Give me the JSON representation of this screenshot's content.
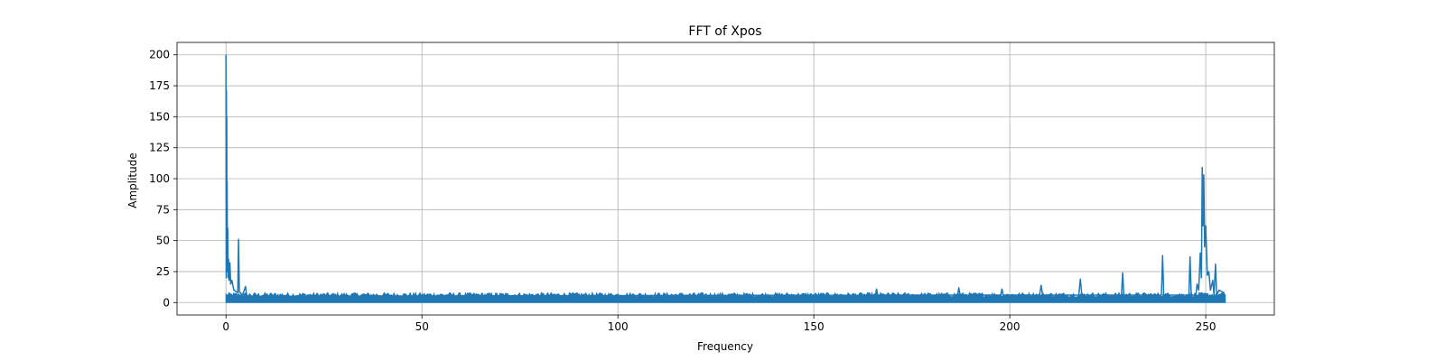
{
  "chart_data": {
    "type": "line",
    "title": "FFT of Xpos",
    "xlabel": "Frequency",
    "ylabel": "Amplitude",
    "xlim": [
      -12.5,
      267.5
    ],
    "ylim": [
      -10,
      210
    ],
    "xticks": [
      0,
      50,
      100,
      150,
      200,
      250
    ],
    "yticks": [
      0,
      25,
      50,
      75,
      100,
      125,
      150,
      175,
      200
    ],
    "grid": true,
    "color": "#1f77b4",
    "noise_floor": {
      "x_range": [
        0,
        255
      ],
      "typical_max": 8
    },
    "series": [
      {
        "points": [
          [
            0.0,
            200
          ],
          [
            0.05,
            20
          ],
          [
            0.1,
            171
          ],
          [
            0.15,
            40
          ],
          [
            0.2,
            150
          ],
          [
            0.25,
            30
          ],
          [
            0.3,
            98
          ],
          [
            0.35,
            25
          ],
          [
            0.45,
            60
          ],
          [
            0.55,
            20
          ],
          [
            0.65,
            35
          ],
          [
            0.8,
            18
          ],
          [
            1.0,
            32
          ],
          [
            1.2,
            15
          ],
          [
            1.5,
            18
          ],
          [
            2.0,
            10
          ],
          [
            3.0,
            8
          ],
          [
            3.2,
            51
          ],
          [
            3.4,
            9
          ],
          [
            4.2,
            6
          ],
          [
            5.0,
            13
          ],
          [
            5.3,
            5
          ],
          [
            165.7,
            6
          ],
          [
            166.0,
            11
          ],
          [
            166.3,
            6
          ],
          [
            186.7,
            6
          ],
          [
            187.0,
            12
          ],
          [
            187.3,
            6
          ],
          [
            197.7,
            6
          ],
          [
            198.0,
            11
          ],
          [
            198.3,
            6
          ],
          [
            207.6,
            6
          ],
          [
            208.0,
            14
          ],
          [
            208.4,
            6
          ],
          [
            217.6,
            6
          ],
          [
            218.0,
            19
          ],
          [
            218.4,
            6
          ],
          [
            228.5,
            6
          ],
          [
            228.8,
            24
          ],
          [
            229.1,
            6
          ],
          [
            238.7,
            6
          ],
          [
            239.0,
            38
          ],
          [
            239.3,
            6
          ],
          [
            245.7,
            6
          ],
          [
            246.0,
            37
          ],
          [
            246.3,
            6
          ],
          [
            247.5,
            6
          ],
          [
            247.8,
            15
          ],
          [
            248.2,
            10
          ],
          [
            248.6,
            40
          ],
          [
            248.9,
            20
          ],
          [
            249.1,
            109
          ],
          [
            249.3,
            62
          ],
          [
            249.5,
            103
          ],
          [
            249.7,
            45
          ],
          [
            250.0,
            62
          ],
          [
            250.4,
            22
          ],
          [
            250.8,
            25
          ],
          [
            251.2,
            10
          ],
          [
            251.8,
            18
          ],
          [
            252.1,
            6
          ],
          [
            252.5,
            31
          ],
          [
            252.8,
            6
          ],
          [
            253.4,
            10
          ],
          [
            254.0,
            9
          ],
          [
            254.6,
            8
          ],
          [
            255.0,
            5
          ]
        ]
      }
    ]
  }
}
